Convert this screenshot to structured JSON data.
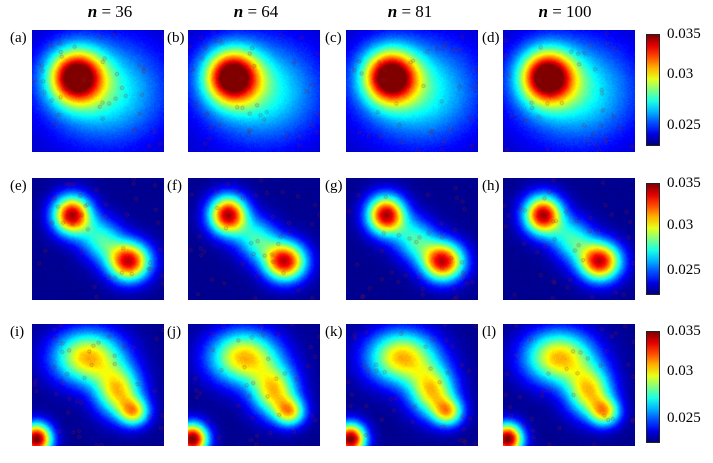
{
  "column_headers": [
    {
      "symbol": "n",
      "value": "= 36"
    },
    {
      "symbol": "n",
      "value": "= 64"
    },
    {
      "symbol": "n",
      "value": "= 81"
    },
    {
      "symbol": "n",
      "value": "= 100"
    }
  ],
  "chart_data": {
    "type": "heatmap",
    "layout": "3 rows x 4 columns of panels; one colorbar per row at right",
    "colormap": "jet",
    "color_range": [
      0.022,
      0.035
    ],
    "colorbar_ticks": [
      "0.035",
      "0.03",
      "0.025"
    ],
    "colorbar_tick_values": [
      0.035,
      0.03,
      0.025
    ],
    "rows": [
      {
        "panels": [
          {
            "label": "(a)",
            "n": 36
          },
          {
            "label": "(b)",
            "n": 64
          },
          {
            "label": "(c)",
            "n": 81
          },
          {
            "label": "(d)",
            "n": 100
          }
        ]
      },
      {
        "panels": [
          {
            "label": "(e)",
            "n": 36
          },
          {
            "label": "(f)",
            "n": 64
          },
          {
            "label": "(g)",
            "n": 81
          },
          {
            "label": "(h)",
            "n": 100
          }
        ]
      },
      {
        "panels": [
          {
            "label": "(i)",
            "n": 36
          },
          {
            "label": "(j)",
            "n": 64
          },
          {
            "label": "(k)",
            "n": 81
          },
          {
            "label": "(l)",
            "n": 100
          }
        ]
      }
    ]
  }
}
